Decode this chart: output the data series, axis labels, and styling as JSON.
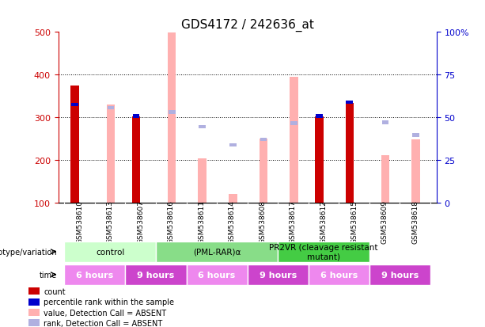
{
  "title": "GDS4172 / 242636_at",
  "samples": [
    "GSM538610",
    "GSM538613",
    "GSM538607",
    "GSM538616",
    "GSM538611",
    "GSM538614",
    "GSM538608",
    "GSM538617",
    "GSM538612",
    "GSM538615",
    "GSM538609",
    "GSM538618"
  ],
  "ylim_left": [
    100,
    500
  ],
  "ylim_right": [
    0,
    100
  ],
  "yticks_left": [
    100,
    200,
    300,
    400,
    500
  ],
  "yticks_right": [
    0,
    25,
    50,
    75,
    100
  ],
  "yticklabels_right": [
    "0",
    "25",
    "50",
    "75",
    "100%"
  ],
  "count_values": [
    375,
    null,
    302,
    null,
    null,
    null,
    null,
    null,
    302,
    333,
    null,
    null
  ],
  "percentile_values": [
    330,
    null,
    303,
    null,
    null,
    null,
    null,
    null,
    303,
    335,
    null,
    null
  ],
  "value_absent": [
    null,
    330,
    null,
    498,
    204,
    120,
    250,
    395,
    null,
    null,
    210,
    248
  ],
  "rank_absent": [
    null,
    322,
    null,
    312,
    278,
    235,
    248,
    286,
    null,
    null,
    288,
    258
  ],
  "count_color": "#cc0000",
  "percentile_color": "#0000cc",
  "value_absent_color": "#ffb0b0",
  "rank_absent_color": "#b0b0e0",
  "bar_width": 0.25,
  "genotype_groups": [
    {
      "label": "control",
      "start": 0,
      "end": 3,
      "color": "#ccffcc"
    },
    {
      "label": "(PML-RAR)α",
      "start": 3,
      "end": 7,
      "color": "#88dd88"
    },
    {
      "label": "PR2VR (cleavage resistant\nmutant)",
      "start": 7,
      "end": 10,
      "color": "#44cc44"
    }
  ],
  "time_groups": [
    {
      "label": "6 hours",
      "start": 0,
      "end": 2,
      "color": "#ee88ee"
    },
    {
      "label": "9 hours",
      "start": 2,
      "end": 4,
      "color": "#cc44cc"
    },
    {
      "label": "6 hours",
      "start": 4,
      "end": 6,
      "color": "#ee88ee"
    },
    {
      "label": "9 hours",
      "start": 6,
      "end": 8,
      "color": "#cc44cc"
    },
    {
      "label": "6 hours",
      "start": 8,
      "end": 10,
      "color": "#ee88ee"
    },
    {
      "label": "9 hours",
      "start": 10,
      "end": 12,
      "color": "#cc44cc"
    }
  ],
  "bg_color": "#ffffff",
  "grid_color": "#000000",
  "axis_left_color": "#cc0000",
  "axis_right_color": "#0000cc"
}
